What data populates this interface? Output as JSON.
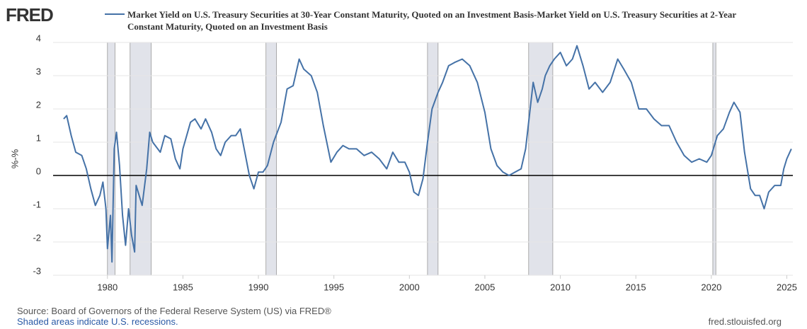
{
  "logo": "FRED",
  "chart_data": {
    "type": "line",
    "title": "Market Yield on U.S. Treasury Securities at 30-Year Constant Maturity, Quoted on an Investment Basis-Market Yield on U.S. Treasury Securities at 2-Year Constant Maturity, Quoted on an Investment Basis",
    "ylabel": "%-%",
    "xlim": [
      1976.4,
      2025.4
    ],
    "xticks": [
      1980,
      1985,
      1990,
      1995,
      2000,
      2005,
      2010,
      2015,
      2020,
      2025
    ],
    "ylim": [
      -3,
      4
    ],
    "yticks": [
      -3,
      -2,
      -1,
      0,
      1,
      2,
      3,
      4
    ],
    "grid": true,
    "recessions": [
      [
        1980.0,
        1980.5
      ],
      [
        1981.5,
        1982.9
      ],
      [
        1990.5,
        1991.2
      ],
      [
        2001.2,
        2001.9
      ],
      [
        2007.9,
        2009.5
      ],
      [
        2020.1,
        2020.3
      ]
    ],
    "recession_color": "#e1e3ea",
    "x": [
      1977.1,
      1977.3,
      1977.6,
      1977.9,
      1978.3,
      1978.6,
      1978.9,
      1979.2,
      1979.5,
      1979.7,
      1979.9,
      1980.0,
      1980.2,
      1980.3,
      1980.45,
      1980.6,
      1980.8,
      1981.0,
      1981.2,
      1981.4,
      1981.6,
      1981.8,
      1981.9,
      1982.1,
      1982.3,
      1982.6,
      1982.8,
      1983.0,
      1983.5,
      1983.8,
      1984.2,
      1984.5,
      1984.8,
      1985.0,
      1985.5,
      1985.8,
      1986.2,
      1986.5,
      1986.9,
      1987.2,
      1987.5,
      1987.8,
      1988.2,
      1988.5,
      1988.8,
      1989.1,
      1989.4,
      1989.7,
      1990.0,
      1990.3,
      1990.6,
      1991.0,
      1991.5,
      1991.9,
      1992.3,
      1992.7,
      1993.0,
      1993.5,
      1993.9,
      1994.3,
      1994.8,
      1995.2,
      1995.6,
      1996.0,
      1996.5,
      1997.0,
      1997.5,
      1998.0,
      1998.5,
      1998.9,
      1999.3,
      1999.7,
      2000.0,
      2000.3,
      2000.6,
      2000.9,
      2001.2,
      2001.5,
      2001.9,
      2002.2,
      2002.6,
      2003.0,
      2003.5,
      2004.0,
      2004.5,
      2005.0,
      2005.4,
      2005.8,
      2006.2,
      2006.6,
      2007.0,
      2007.4,
      2007.7,
      2007.9,
      2008.2,
      2008.5,
      2008.8,
      2009.0,
      2009.3,
      2009.6,
      2010.0,
      2010.4,
      2010.8,
      2011.1,
      2011.5,
      2011.9,
      2012.3,
      2012.8,
      2013.3,
      2013.8,
      2014.2,
      2014.7,
      2015.2,
      2015.7,
      2016.2,
      2016.7,
      2017.2,
      2017.7,
      2018.2,
      2018.7,
      2019.2,
      2019.7,
      2020.0,
      2020.4,
      2020.8,
      2021.2,
      2021.5,
      2021.9,
      2022.2,
      2022.6,
      2022.9,
      2023.2,
      2023.5,
      2023.8,
      2024.2,
      2024.6,
      2024.8,
      2025.0,
      2025.3
    ],
    "series": [
      {
        "name": "Market Yield on U.S. Treasury Securities at 30-Year Constant Maturity, Quoted on an Investment Basis-Market Yield on U.S. Treasury Securities at 2-Year Constant Maturity, Quoted on an Investment Basis",
        "color": "#4572a7",
        "values": [
          1.7,
          1.8,
          1.2,
          0.7,
          0.6,
          0.2,
          -0.4,
          -0.9,
          -0.6,
          -0.2,
          -1.0,
          -2.2,
          -1.2,
          -2.6,
          0.8,
          1.3,
          0.3,
          -1.2,
          -2.1,
          -1.0,
          -1.8,
          -2.3,
          -0.3,
          -0.6,
          -0.9,
          0.2,
          1.3,
          1.0,
          0.7,
          1.2,
          1.1,
          0.5,
          0.2,
          0.8,
          1.6,
          1.7,
          1.4,
          1.7,
          1.3,
          0.8,
          0.6,
          1.0,
          1.2,
          1.2,
          1.4,
          0.7,
          0.0,
          -0.4,
          0.1,
          0.1,
          0.3,
          1.0,
          1.6,
          2.6,
          2.7,
          3.5,
          3.2,
          3.0,
          2.5,
          1.5,
          0.4,
          0.7,
          0.9,
          0.8,
          0.8,
          0.6,
          0.7,
          0.5,
          0.2,
          0.7,
          0.4,
          0.4,
          0.1,
          -0.5,
          -0.6,
          -0.1,
          1.0,
          2.0,
          2.5,
          2.8,
          3.3,
          3.4,
          3.5,
          3.3,
          2.8,
          1.9,
          0.8,
          0.3,
          0.1,
          0.0,
          0.1,
          0.2,
          0.8,
          1.6,
          2.8,
          2.2,
          2.6,
          3.0,
          3.3,
          3.5,
          3.7,
          3.3,
          3.5,
          3.9,
          3.3,
          2.6,
          2.8,
          2.5,
          2.8,
          3.5,
          3.2,
          2.8,
          2.0,
          2.0,
          1.7,
          1.5,
          1.5,
          1.0,
          0.6,
          0.4,
          0.5,
          0.4,
          0.6,
          1.2,
          1.4,
          1.9,
          2.2,
          1.9,
          0.7,
          -0.4,
          -0.6,
          -0.6,
          -1.0,
          -0.5,
          -0.3,
          -0.3,
          0.2,
          0.5,
          0.8
        ]
      }
    ]
  },
  "source": "Source: Board of Governors of the Federal Reserve System (US) via FRED®",
  "recession_note": "Shaded areas indicate U.S. recessions.",
  "site": "fred.stlouisfed.org"
}
